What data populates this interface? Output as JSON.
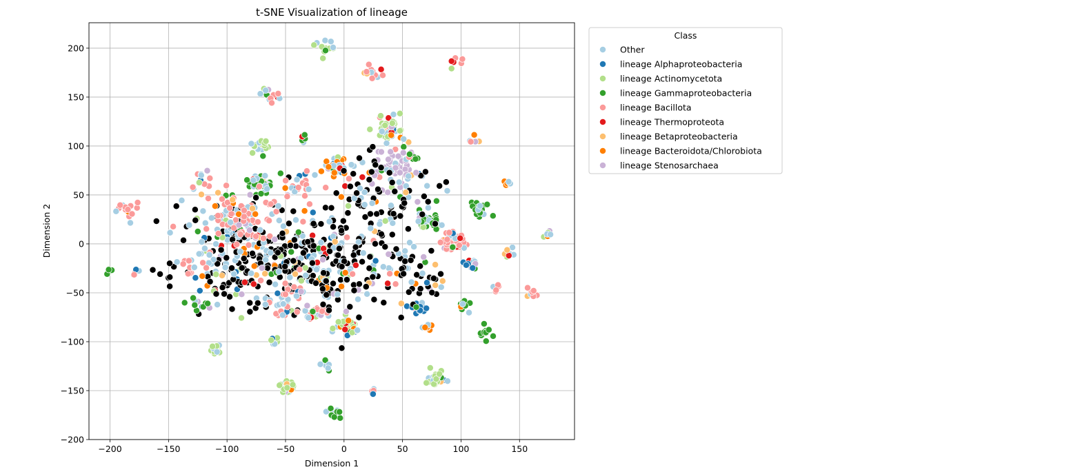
{
  "chart_data": {
    "type": "scatter",
    "title": "t-SNE Visualization of lineage",
    "xlabel": "Dimension 1",
    "ylabel": "Dimension 2",
    "xlim": [
      -218,
      197
    ],
    "ylim": [
      -200,
      226
    ],
    "xticks": [
      -200,
      -150,
      -100,
      -50,
      0,
      50,
      100,
      150
    ],
    "yticks": [
      -200,
      -150,
      -100,
      -50,
      0,
      50,
      100,
      150,
      200
    ],
    "xtick_labels": [
      "−200",
      "−150",
      "−100",
      "−50",
      "0",
      "50",
      "100",
      "150"
    ],
    "ytick_labels": [
      "−200",
      "−150",
      "−100",
      "−50",
      "0",
      "50",
      "100",
      "150",
      "200"
    ],
    "grid": true,
    "legend": {
      "title": "Class",
      "placement": "outside-right-top",
      "entries": [
        {
          "name": "Other",
          "color": "#a6cee3"
        },
        {
          "name": "lineage Alphaproteobacteria",
          "color": "#1f78b4"
        },
        {
          "name": "lineage Actinomycetota",
          "color": "#b2df8a"
        },
        {
          "name": "lineage Gammaproteobacteria",
          "color": "#33a02c"
        },
        {
          "name": "lineage Bacillota",
          "color": "#fb9a99"
        },
        {
          "name": "lineage Thermoproteota",
          "color": "#e31a1c"
        },
        {
          "name": "lineage Betaproteobacteria",
          "color": "#fdbf6f"
        },
        {
          "name": "lineage Bacteroidota/Chlorobiota",
          "color": "#ff7f00"
        },
        {
          "name": "lineage Stenosarchaea",
          "color": "#cab2d6"
        }
      ]
    },
    "clusters": [
      {
        "x": -72,
        "y": 62,
        "r": 5,
        "n": 40,
        "s": 3
      },
      {
        "x": 40,
        "y": 118,
        "r": 6,
        "n": 45,
        "s": 2
      },
      {
        "x": 72,
        "y": 24,
        "r": 5,
        "n": 40,
        "s": 3
      },
      {
        "x": 92,
        "y": 2,
        "r": 6,
        "n": 45,
        "s": 4
      },
      {
        "x": -8,
        "y": 80,
        "r": 5,
        "n": 35,
        "s": 7
      },
      {
        "x": 3,
        "y": -85,
        "r": 5,
        "n": 35,
        "s": 2
      },
      {
        "x": -48,
        "y": -145,
        "r": 4,
        "n": 25,
        "s": 2
      },
      {
        "x": 78,
        "y": -138,
        "r": 4,
        "n": 25,
        "s": 2
      },
      {
        "x": -108,
        "y": -108,
        "r": 3,
        "n": 15,
        "s": 2
      },
      {
        "x": -72,
        "y": 100,
        "r": 4,
        "n": 20,
        "s": 2
      },
      {
        "x": 115,
        "y": 35,
        "r": 4,
        "n": 20,
        "s": 3
      },
      {
        "x": 110,
        "y": -22,
        "r": 3,
        "n": 15,
        "s": 1
      },
      {
        "x": 65,
        "y": -65,
        "r": 3,
        "n": 15,
        "s": 1
      },
      {
        "x": -25,
        "y": -70,
        "r": 4,
        "n": 20,
        "s": 4
      },
      {
        "x": -185,
        "y": 36,
        "r": 5,
        "n": 15,
        "s": 4
      },
      {
        "x": -15,
        "y": 200,
        "r": 5,
        "n": 12,
        "s": 2
      },
      {
        "x": 25,
        "y": 175,
        "r": 5,
        "n": 12,
        "s": 4
      },
      {
        "x": -62,
        "y": 152,
        "r": 5,
        "n": 12,
        "s": 4
      },
      {
        "x": -10,
        "y": -172,
        "r": 4,
        "n": 12,
        "s": 3
      },
      {
        "x": 140,
        "y": -10,
        "r": 3,
        "n": 10,
        "s": 6
      },
      {
        "x": 45,
        "y": 75,
        "r": 12,
        "n": 60,
        "s": 8
      },
      {
        "x": 30,
        "y": 40,
        "r": 25,
        "n": 110,
        "s": 9
      },
      {
        "x": -85,
        "y": -10,
        "r": 28,
        "n": 200,
        "s": 9
      },
      {
        "x": -40,
        "y": -25,
        "r": 25,
        "n": 140,
        "s": 9
      },
      {
        "x": 0,
        "y": -20,
        "r": 25,
        "n": 120,
        "s": 9
      },
      {
        "x": -90,
        "y": 20,
        "r": 20,
        "n": 90,
        "s": 4
      },
      {
        "x": 60,
        "y": -35,
        "r": 15,
        "n": 45,
        "s": 9
      },
      {
        "x": -50,
        "y": -57,
        "r": 10,
        "n": 35,
        "s": 4
      },
      {
        "x": -127,
        "y": -22,
        "r": 6,
        "n": 15,
        "s": 4
      },
      {
        "x": -125,
        "y": -62,
        "r": 5,
        "n": 12,
        "s": 3
      },
      {
        "x": -120,
        "y": 63,
        "r": 5,
        "n": 10,
        "s": 4
      },
      {
        "x": -40,
        "y": 60,
        "r": 8,
        "n": 25,
        "s": 4
      },
      {
        "x": 100,
        "y": -62,
        "r": 4,
        "n": 12,
        "s": 3
      },
      {
        "x": 120,
        "y": -90,
        "r": 4,
        "n": 10,
        "s": 3
      },
      {
        "x": 160,
        "y": -50,
        "r": 3,
        "n": 8,
        "s": 4
      },
      {
        "x": 175,
        "y": 10,
        "r": 3,
        "n": 8,
        "s": 2
      },
      {
        "x": 70,
        "y": -85,
        "r": 3,
        "n": 8,
        "s": 7
      },
      {
        "x": 95,
        "y": 186,
        "r": 3,
        "n": 6,
        "s": 4
      },
      {
        "x": 140,
        "y": 62,
        "r": 2,
        "n": 5,
        "s": 7
      },
      {
        "x": -15,
        "y": -125,
        "r": 3,
        "n": 8,
        "s": 3
      },
      {
        "x": 25,
        "y": -150,
        "r": 2,
        "n": 5,
        "s": 4
      },
      {
        "x": -60,
        "y": -100,
        "r": 2,
        "n": 6,
        "s": 2
      },
      {
        "x": -35,
        "y": 108,
        "r": 3,
        "n": 6,
        "s": 3
      },
      {
        "x": 110,
        "y": 105,
        "r": 3,
        "n": 5,
        "s": 7
      },
      {
        "x": -200,
        "y": -28,
        "r": 2,
        "n": 4,
        "s": 3
      },
      {
        "x": -180,
        "y": -29,
        "r": 3,
        "n": 5,
        "s": 4
      },
      {
        "x": 60,
        "y": 88,
        "r": 3,
        "n": 6,
        "s": 3
      },
      {
        "x": 130,
        "y": -45,
        "r": 3,
        "n": 5,
        "s": 4
      }
    ]
  }
}
